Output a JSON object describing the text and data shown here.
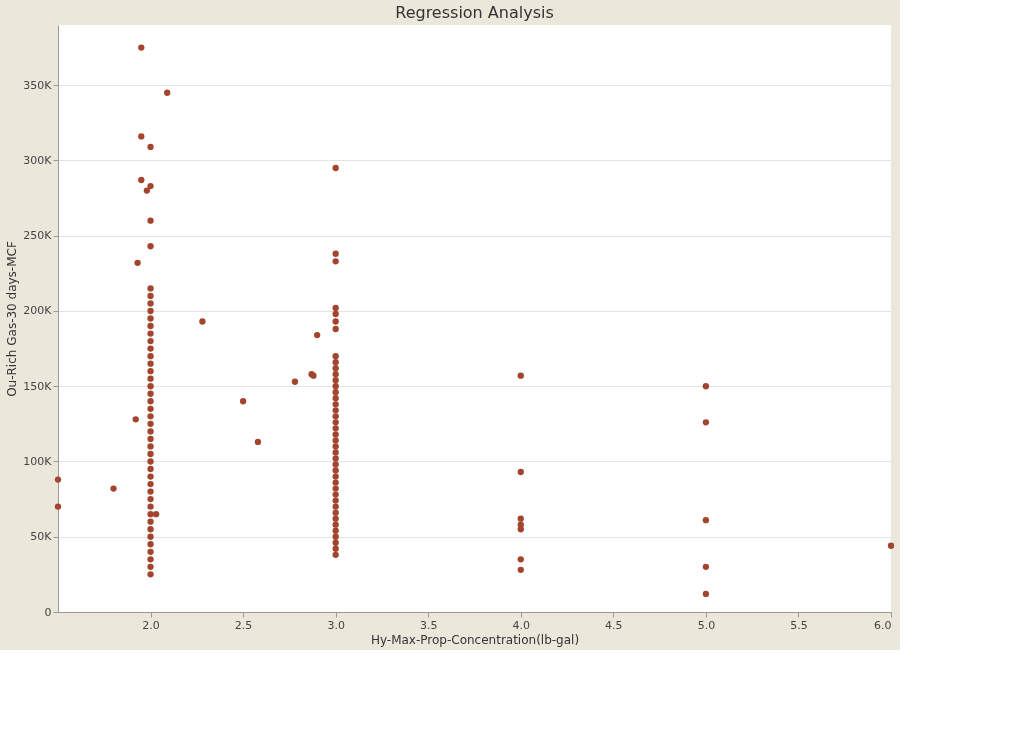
{
  "chart_data": {
    "type": "scatter",
    "title": "Regression Analysis",
    "xlabel": "Hy-Max-Prop-Concentration(lb-gal)",
    "ylabel": "Ou-Rich Gas-30 days-MCF",
    "xlim": [
      1.5,
      6.0
    ],
    "xticks": [
      {
        "value": 2,
        "label": "2.0"
      },
      2.5,
      {
        "value": 3,
        "label": "3.0"
      },
      3.5,
      {
        "value": 4,
        "label": "4.0"
      },
      4.5,
      {
        "value": 5,
        "label": "5.0"
      },
      5.5,
      {
        "value": 6,
        "label": "6.0"
      }
    ],
    "ylim": [
      0,
      390000
    ],
    "yticks": [
      0,
      {
        "value": 50000,
        "label": "50K"
      },
      {
        "value": 100000,
        "label": "100K"
      },
      {
        "value": 150000,
        "label": "150K"
      },
      {
        "value": 200000,
        "label": "200K"
      },
      {
        "value": 250000,
        "label": "250K"
      },
      {
        "value": 300000,
        "label": "300K"
      },
      {
        "value": 350000,
        "label": "350K"
      }
    ],
    "grid": "y",
    "marker": "circle",
    "series": [
      {
        "color": "#a3452e",
        "x": [
          1.5,
          1.5,
          1.8,
          1.92,
          1.93,
          1.95,
          1.95,
          1.95,
          1.98,
          2.0,
          2.0,
          2.0,
          2.0,
          2.09,
          2.03,
          2.28,
          2.5,
          2.58,
          2.78,
          2.87,
          2.88,
          2.9,
          3.0,
          3.0,
          3.0,
          3.0,
          3.0,
          3.0,
          3.0,
          4.0,
          4.0,
          4.0,
          4.0,
          4.0,
          4.0,
          4.0,
          5.0,
          5.0,
          5.0,
          5.0,
          5.0,
          6.0,
          2.0,
          2.0,
          2.0,
          2.0,
          2.0,
          2.0,
          2.0,
          2.0,
          2.0,
          2.0,
          2.0,
          2.0,
          2.0,
          2.0,
          2.0,
          2.0,
          2.0,
          2.0,
          2.0,
          2.0,
          2.0,
          2.0,
          2.0,
          2.0,
          2.0,
          2.0,
          2.0,
          2.0,
          2.0,
          2.0,
          2.0,
          2.0,
          2.0,
          2.0,
          2.0,
          2.0,
          2.0,
          2.0,
          2.0,
          3.0,
          3.0,
          3.0,
          3.0,
          3.0,
          3.0,
          3.0,
          3.0,
          3.0,
          3.0,
          3.0,
          3.0,
          3.0,
          3.0,
          3.0,
          3.0,
          3.0,
          3.0,
          3.0,
          3.0,
          3.0,
          3.0,
          3.0,
          3.0,
          3.0,
          3.0,
          3.0,
          3.0,
          3.0,
          3.0,
          3.0,
          3.0,
          3.0,
          3.0
        ],
        "values": [
          88000,
          70000,
          82000,
          128000,
          232000,
          375000,
          316000,
          287000,
          280000,
          309000,
          283000,
          260000,
          243000,
          345000,
          65000,
          193000,
          140000,
          113000,
          153000,
          158000,
          157000,
          184000,
          295000,
          238000,
          233000,
          202000,
          198000,
          193000,
          188000,
          157000,
          93000,
          62000,
          58000,
          55000,
          35000,
          28000,
          150000,
          126000,
          61000,
          30000,
          12000,
          44000,
          25000,
          30000,
          35000,
          40000,
          45000,
          50000,
          55000,
          60000,
          65000,
          70000,
          75000,
          80000,
          85000,
          90000,
          95000,
          100000,
          105000,
          110000,
          115000,
          120000,
          125000,
          130000,
          135000,
          140000,
          145000,
          150000,
          155000,
          160000,
          165000,
          170000,
          175000,
          180000,
          185000,
          190000,
          195000,
          200000,
          205000,
          210000,
          215000,
          38000,
          42000,
          46000,
          50000,
          54000,
          58000,
          62000,
          66000,
          70000,
          74000,
          78000,
          82000,
          86000,
          90000,
          94000,
          98000,
          102000,
          106000,
          110000,
          114000,
          118000,
          122000,
          126000,
          130000,
          134000,
          138000,
          142000,
          146000,
          150000,
          154000,
          158000,
          162000,
          166000,
          170000
        ]
      }
    ]
  }
}
